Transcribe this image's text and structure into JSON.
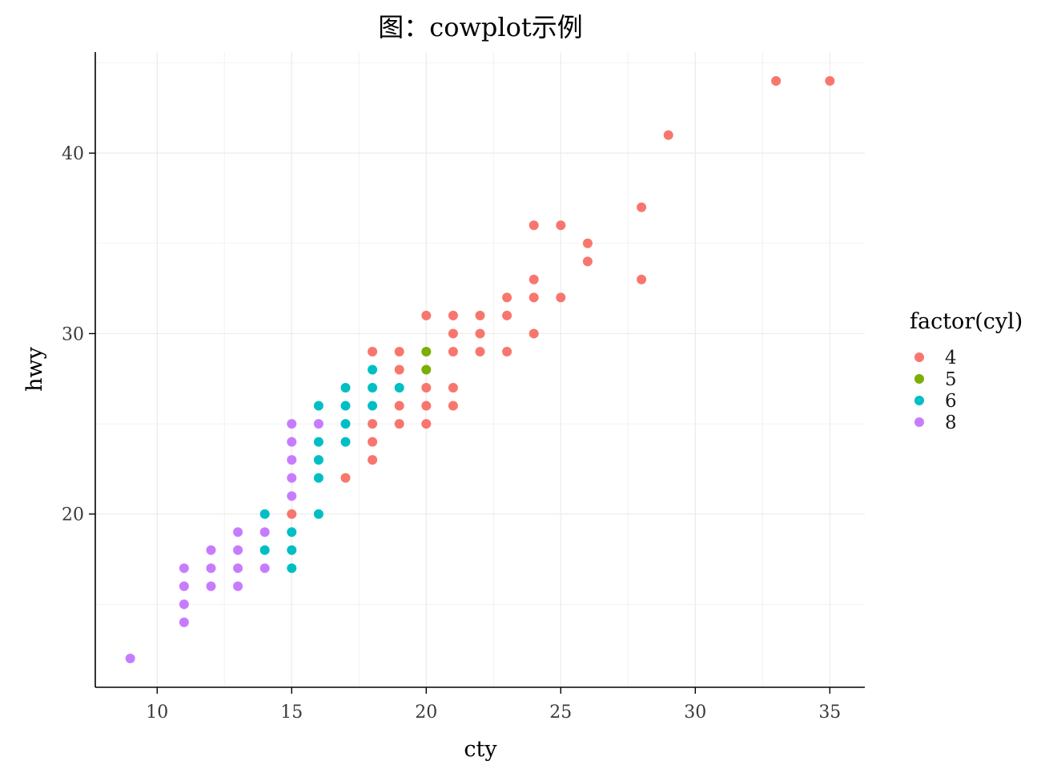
{
  "chart_data": {
    "type": "scatter",
    "title": "图：cowplot示例",
    "xlabel": "cty",
    "ylabel": "hwy",
    "xlim": [
      7.7,
      36.3
    ],
    "ylim": [
      10.4,
      45.6
    ],
    "x_ticks": [
      10,
      15,
      20,
      25,
      30,
      35
    ],
    "y_ticks": [
      20,
      30,
      40
    ],
    "x_tick_labels": [
      "10",
      "15",
      "20",
      "25",
      "30",
      "35"
    ],
    "y_tick_labels": [
      "20",
      "30",
      "40"
    ],
    "grid": true,
    "legend": {
      "title": "factor(cyl)",
      "position": "right"
    },
    "series": [
      {
        "name": "4",
        "color": "#F8766D",
        "points": [
          [
            33,
            44
          ],
          [
            35,
            44
          ],
          [
            29,
            41
          ],
          [
            28,
            37
          ],
          [
            24,
            36
          ],
          [
            25,
            36
          ],
          [
            26,
            35
          ],
          [
            26,
            34
          ],
          [
            24,
            33
          ],
          [
            28,
            33
          ],
          [
            23,
            32
          ],
          [
            24,
            32
          ],
          [
            25,
            32
          ],
          [
            20,
            31
          ],
          [
            21,
            31
          ],
          [
            22,
            31
          ],
          [
            23,
            31
          ],
          [
            21,
            30
          ],
          [
            22,
            30
          ],
          [
            24,
            30
          ],
          [
            18,
            29
          ],
          [
            19,
            29
          ],
          [
            21,
            29
          ],
          [
            22,
            29
          ],
          [
            23,
            29
          ],
          [
            19,
            28
          ],
          [
            20,
            27
          ],
          [
            21,
            27
          ],
          [
            19,
            26
          ],
          [
            20,
            26
          ],
          [
            21,
            26
          ],
          [
            18,
            25
          ],
          [
            19,
            25
          ],
          [
            20,
            25
          ],
          [
            18,
            24
          ],
          [
            18,
            23
          ],
          [
            17,
            22
          ],
          [
            15,
            20
          ]
        ]
      },
      {
        "name": "5",
        "color": "#7CAE00",
        "points": [
          [
            20,
            29
          ],
          [
            20,
            28
          ]
        ]
      },
      {
        "name": "6",
        "color": "#00BFC4",
        "points": [
          [
            18,
            28
          ],
          [
            17,
            27
          ],
          [
            18,
            27
          ],
          [
            19,
            27
          ],
          [
            16,
            26
          ],
          [
            17,
            26
          ],
          [
            18,
            26
          ],
          [
            17,
            25
          ],
          [
            16,
            24
          ],
          [
            17,
            24
          ],
          [
            16,
            23
          ],
          [
            16,
            22
          ],
          [
            14,
            20
          ],
          [
            16,
            20
          ],
          [
            15,
            19
          ],
          [
            14,
            18
          ],
          [
            15,
            18
          ],
          [
            15,
            17
          ]
        ]
      },
      {
        "name": "8",
        "color": "#C77CFF",
        "points": [
          [
            15,
            25
          ],
          [
            16,
            25
          ],
          [
            15,
            24
          ],
          [
            15,
            23
          ],
          [
            15,
            22
          ],
          [
            15,
            21
          ],
          [
            13,
            19
          ],
          [
            14,
            19
          ],
          [
            12,
            18
          ],
          [
            13,
            18
          ],
          [
            11,
            17
          ],
          [
            12,
            17
          ],
          [
            13,
            17
          ],
          [
            14,
            17
          ],
          [
            11,
            16
          ],
          [
            12,
            16
          ],
          [
            13,
            16
          ],
          [
            11,
            15
          ],
          [
            11,
            14
          ],
          [
            9,
            12
          ]
        ]
      }
    ]
  }
}
